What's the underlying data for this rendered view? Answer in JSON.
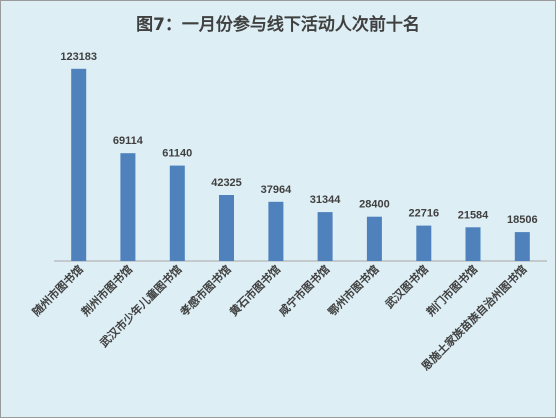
{
  "chart_data": {
    "type": "bar",
    "title": "图7：一月份参与线下活动人次前十名",
    "categories": [
      "随州市图书馆",
      "荆州市图书馆",
      "武汉市少年儿童图书馆",
      "孝感市图书馆",
      "黄石市图书馆",
      "咸宁市图书馆",
      "鄂州市图书馆",
      "武汉图书馆",
      "荆门市图书馆",
      "恩施土家族苗族自治州图书馆"
    ],
    "values": [
      123183,
      69114,
      61140,
      42325,
      37964,
      31344,
      28400,
      22716,
      21584,
      18506
    ],
    "ylim": [
      0,
      130000
    ],
    "grid": false,
    "legend": "none",
    "colors": {
      "bar": "#4f81bd",
      "background": "#ddeef4",
      "text": "#404040",
      "axis": "#a6a6a6"
    }
  }
}
